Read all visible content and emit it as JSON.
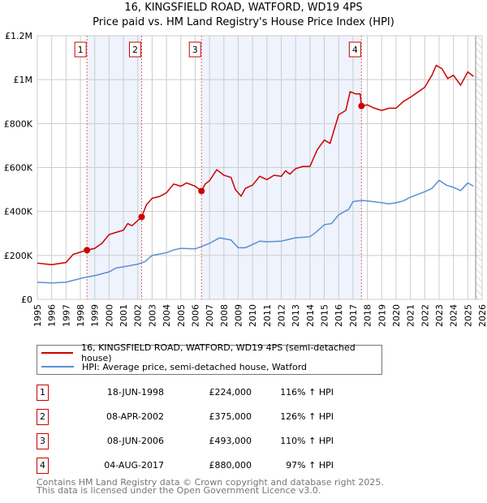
{
  "chart_data": {
    "type": "line",
    "title": "16, KINGSFIELD ROAD, WATFORD, WD19 4PS",
    "subtitle": "Price paid vs. HM Land Registry's House Price Index (HPI)",
    "xlim": [
      1995,
      2026
    ],
    "ylim": [
      0,
      1200000
    ],
    "yticks": [
      {
        "v": 0,
        "label": "£0"
      },
      {
        "v": 200000,
        "label": "£200K"
      },
      {
        "v": 400000,
        "label": "£400K"
      },
      {
        "v": 600000,
        "label": "£600K"
      },
      {
        "v": 800000,
        "label": "£800K"
      },
      {
        "v": 1000000,
        "label": "£1M"
      },
      {
        "v": 1200000,
        "label": "£1.2M"
      }
    ],
    "xticks": [
      1995,
      1996,
      1997,
      1998,
      1999,
      2000,
      2001,
      2002,
      2003,
      2004,
      2005,
      2006,
      2007,
      2008,
      2009,
      2010,
      2011,
      2012,
      2013,
      2014,
      2015,
      2016,
      2017,
      2018,
      2019,
      2020,
      2021,
      2022,
      2023,
      2024,
      2025,
      2026
    ],
    "grid": true,
    "series": [
      {
        "name": "16, KINGSFIELD ROAD, WATFORD, WD19 4PS (semi-detached house)",
        "color": "#cc0000",
        "x": [
          1995,
          1996,
          1997,
          1997.5,
          1998,
          1998.46,
          1999,
          1999.5,
          2000,
          2000.5,
          2001,
          2001.3,
          2001.6,
          2002.27,
          2002.6,
          2003,
          2003.5,
          2004,
          2004.5,
          2005,
          2005.4,
          2006,
          2006.44,
          2006.7,
          2007,
          2007.5,
          2008,
          2008.5,
          2008.8,
          2009.2,
          2009.5,
          2010,
          2010.5,
          2011,
          2011.5,
          2012,
          2012.3,
          2012.6,
          2013,
          2013.5,
          2014,
          2014.5,
          2015,
          2015.4,
          2016,
          2016.5,
          2016.8,
          2017.2,
          2017.5,
          2017.59,
          2018,
          2018.5,
          2019,
          2019.5,
          2020,
          2020.5,
          2021,
          2022,
          2022.5,
          2022.8,
          2023.2,
          2023.6,
          2024,
          2024.5,
          2025,
          2025.4
        ],
        "y": [
          165,
          158,
          168,
          205,
          215,
          224,
          232,
          255,
          295,
          305,
          315,
          345,
          335,
          375,
          430,
          460,
          468,
          485,
          525,
          515,
          530,
          515,
          493,
          525,
          540,
          590,
          565,
          555,
          500,
          470,
          505,
          520,
          560,
          545,
          565,
          560,
          585,
          570,
          595,
          605,
          605,
          680,
          725,
          710,
          840,
          860,
          945,
          935,
          935,
          880,
          885,
          870,
          860,
          870,
          870,
          900,
          920,
          965,
          1020,
          1065,
          1050,
          1005,
          1020,
          975,
          1035,
          1015
        ]
      },
      {
        "name": "HPI: Average price, semi-detached house, Watford",
        "color": "#5b8fd4",
        "x": [
          1995,
          1996,
          1997,
          1998,
          1998.5,
          1999,
          2000,
          2000.5,
          2001,
          2002,
          2002.5,
          2003,
          2004,
          2004.5,
          2005,
          2006,
          2007,
          2007.7,
          2008.5,
          2009,
          2009.5,
          2010,
          2010.5,
          2011,
          2012,
          2013,
          2014,
          2014.5,
          2015,
          2015.5,
          2016,
          2016.7,
          2017,
          2017.6,
          2018,
          2019,
          2019.5,
          2020,
          2020.5,
          2021,
          2022,
          2022.5,
          2023,
          2023.5,
          2024,
          2024.5,
          2025,
          2025.4
        ],
        "y": [
          78,
          75,
          78,
          95,
          102,
          108,
          125,
          143,
          148,
          160,
          172,
          200,
          212,
          225,
          232,
          230,
          255,
          280,
          270,
          235,
          235,
          250,
          265,
          262,
          265,
          280,
          285,
          310,
          340,
          345,
          385,
          410,
          445,
          450,
          448,
          440,
          435,
          440,
          448,
          465,
          490,
          505,
          542,
          520,
          510,
          495,
          530,
          515
        ]
      }
    ],
    "y_units": "thousands GBP",
    "sales": [
      {
        "n": "1",
        "x": 1998.46,
        "price": 224000,
        "date": "18-JUN-1998",
        "price_label": "£224,000",
        "hpi": "116% ↑ HPI"
      },
      {
        "n": "2",
        "x": 2002.27,
        "price": 375000,
        "date": "08-APR-2002",
        "price_label": "£375,000",
        "hpi": "126% ↑ HPI"
      },
      {
        "n": "3",
        "x": 2006.44,
        "price": 493000,
        "date": "08-JUN-2006",
        "price_label": "£493,000",
        "hpi": "110% ↑ HPI"
      },
      {
        "n": "4",
        "x": 2017.59,
        "price": 880000,
        "date": "04-AUG-2017",
        "price_label": "£880,000",
        "hpi": "97% ↑ HPI"
      }
    ],
    "shaded_periods": [
      [
        1998.46,
        2002.27
      ],
      [
        2006.44,
        2017.59
      ]
    ],
    "forecast_start": 2025.55,
    "legend_placement": "bottom"
  },
  "footer": {
    "line1": "Contains HM Land Registry data © Crown copyright and database right 2025.",
    "line2": "This data is licensed under the Open Government Licence v3.0."
  }
}
